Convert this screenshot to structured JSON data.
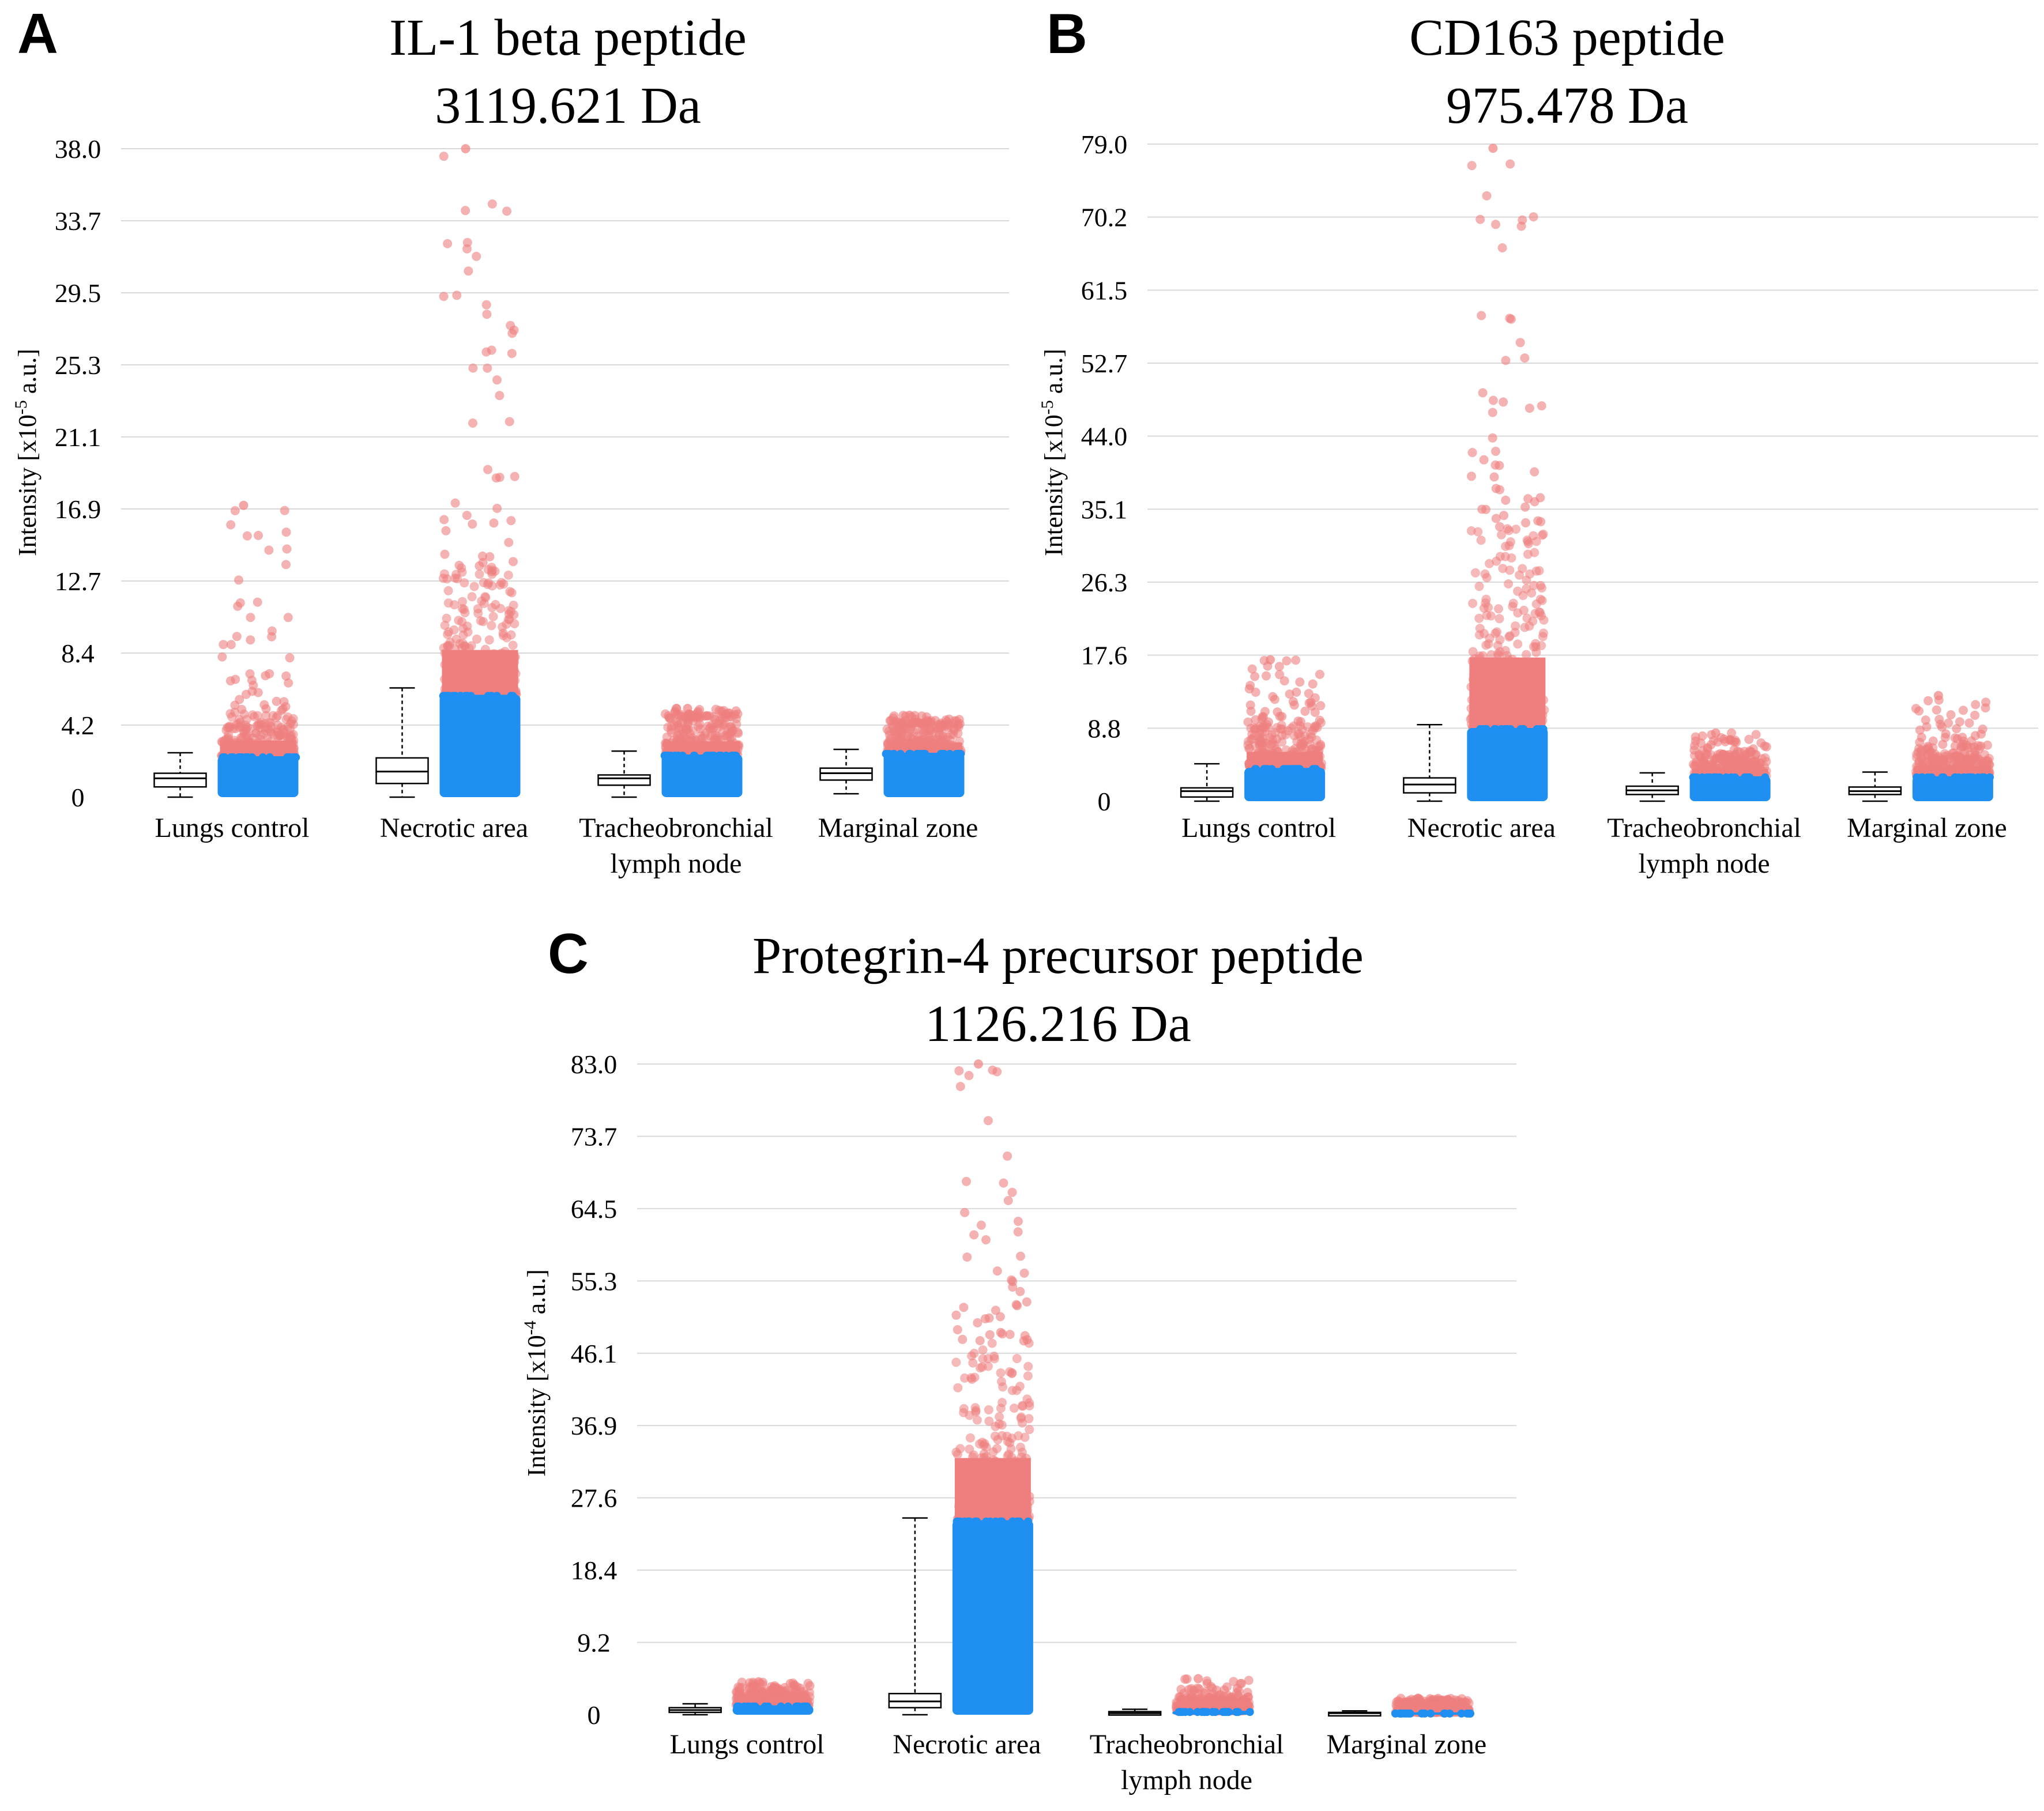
{
  "colors": {
    "low": "#1f8ff2",
    "high": "#ef7f7f",
    "grid": "#d9d9d9"
  },
  "chart_data": [
    {
      "id": "A",
      "panel_label": "A",
      "type": "box+strip",
      "title_line1": "IL-1 beta peptide",
      "title_line2": "3119.621 Da",
      "ylabel_prefix": "Intensity [x10",
      "ylabel_exp": "-5",
      "ylabel_suffix": " a.u.]",
      "ylim": [
        0,
        38.0
      ],
      "ticks": [
        "0",
        "4.2",
        "8.4",
        "12.7",
        "16.9",
        "21.1",
        "25.3",
        "29.5",
        "33.7",
        "38.0"
      ],
      "categories": [
        {
          "label1": "Lungs control",
          "label2": "",
          "box": {
            "min": 0.0,
            "q1": 0.6,
            "median": 1.1,
            "q3": 1.4,
            "max": 2.6
          },
          "blue_max": 2.4,
          "pink_dense_max": 5.0,
          "max": 17.1
        },
        {
          "label1": "Necrotic area",
          "label2": "",
          "box": {
            "min": 0.0,
            "q1": 0.8,
            "median": 1.5,
            "q3": 2.3,
            "max": 6.4
          },
          "blue_max": 6.0,
          "pink_dense_max": 13.5,
          "max": 38.0
        },
        {
          "label1": "Tracheobronchial",
          "label2": "lymph node",
          "box": {
            "min": 0.0,
            "q1": 0.7,
            "median": 1.1,
            "q3": 1.3,
            "max": 2.7
          },
          "blue_max": 2.5,
          "pink_dense_max": 4.7,
          "max": 5.2
        },
        {
          "label1": "Marginal zone",
          "label2": "",
          "box": {
            "min": 0.2,
            "q1": 1.0,
            "median": 1.4,
            "q3": 1.7,
            "max": 2.8
          },
          "blue_max": 2.6,
          "pink_dense_max": 4.3,
          "max": 4.8
        }
      ]
    },
    {
      "id": "B",
      "panel_label": "B",
      "type": "box+strip",
      "title_line1": "CD163 peptide",
      "title_line2": "975.478 Da",
      "ylabel_prefix": "Intensity [x10",
      "ylabel_exp": "-5",
      "ylabel_suffix": " a.u.]",
      "ylim": [
        0,
        79.0
      ],
      "ticks": [
        "0",
        "8.8",
        "17.6",
        "26.3",
        "35.1",
        "44.0",
        "52.7",
        "61.5",
        "70.2",
        "79.0"
      ],
      "categories": [
        {
          "label1": "Lungs control",
          "label2": "",
          "box": {
            "min": 0.0,
            "q1": 0.5,
            "median": 1.2,
            "q3": 1.6,
            "max": 4.5
          },
          "blue_max": 4.0,
          "pink_dense_max": 9.5,
          "max": 17.0
        },
        {
          "label1": "Necrotic area",
          "label2": "",
          "box": {
            "min": 0.0,
            "q1": 1.0,
            "median": 2.0,
            "q3": 2.8,
            "max": 9.2
          },
          "blue_max": 8.8,
          "pink_dense_max": 33.0,
          "max": 78.5
        },
        {
          "label1": "Tracheobronchial",
          "label2": "lymph node",
          "box": {
            "min": 0.0,
            "q1": 0.8,
            "median": 1.3,
            "q3": 1.8,
            "max": 3.4
          },
          "blue_max": 3.0,
          "pink_dense_max": 5.6,
          "max": 8.2
        },
        {
          "label1": "Marginal zone",
          "label2": "",
          "box": {
            "min": 0.0,
            "q1": 0.8,
            "median": 1.2,
            "q3": 1.7,
            "max": 3.5
          },
          "blue_max": 3.0,
          "pink_dense_max": 6.5,
          "max": 12.7
        }
      ]
    },
    {
      "id": "C",
      "panel_label": "C",
      "type": "box+strip",
      "title_line1": "Protegrin-4 precursor peptide",
      "title_line2": "1126.216 Da",
      "ylabel_prefix": "Intensity [x10",
      "ylabel_exp": "-4",
      "ylabel_suffix": " a.u.]",
      "ylim": [
        0,
        83.0
      ],
      "ticks": [
        "0",
        "9.2",
        "18.4",
        "27.6",
        "36.9",
        "46.1",
        "55.3",
        "64.5",
        "73.7",
        "83.0"
      ],
      "categories": [
        {
          "label1": "Lungs control",
          "label2": "",
          "box": {
            "min": 0.0,
            "q1": 0.3,
            "median": 0.6,
            "q3": 0.9,
            "max": 1.4
          },
          "blue_max": 1.2,
          "pink_dense_max": 3.0,
          "max": 4.2
        },
        {
          "label1": "Necrotic area",
          "label2": "",
          "box": {
            "min": 0.0,
            "q1": 0.9,
            "median": 1.7,
            "q3": 2.7,
            "max": 25.1
          },
          "blue_max": 24.8,
          "pink_dense_max": 47.5,
          "max": 83.0
        },
        {
          "label1": "Tracheobronchial",
          "label2": "lymph node",
          "box": {
            "min": 0.0,
            "q1": 0.1,
            "median": 0.2,
            "q3": 0.4,
            "max": 0.7
          },
          "blue_max": 0.5,
          "pink_dense_max": 2.2,
          "max": 4.6
        },
        {
          "label1": "Marginal zone",
          "label2": "",
          "box": {
            "min": 0.0,
            "q1": 0.1,
            "median": 0.2,
            "q3": 0.3,
            "max": 0.5
          },
          "blue_max": 0.3,
          "pink_dense_max": 1.6,
          "max": 2.1
        }
      ]
    }
  ]
}
